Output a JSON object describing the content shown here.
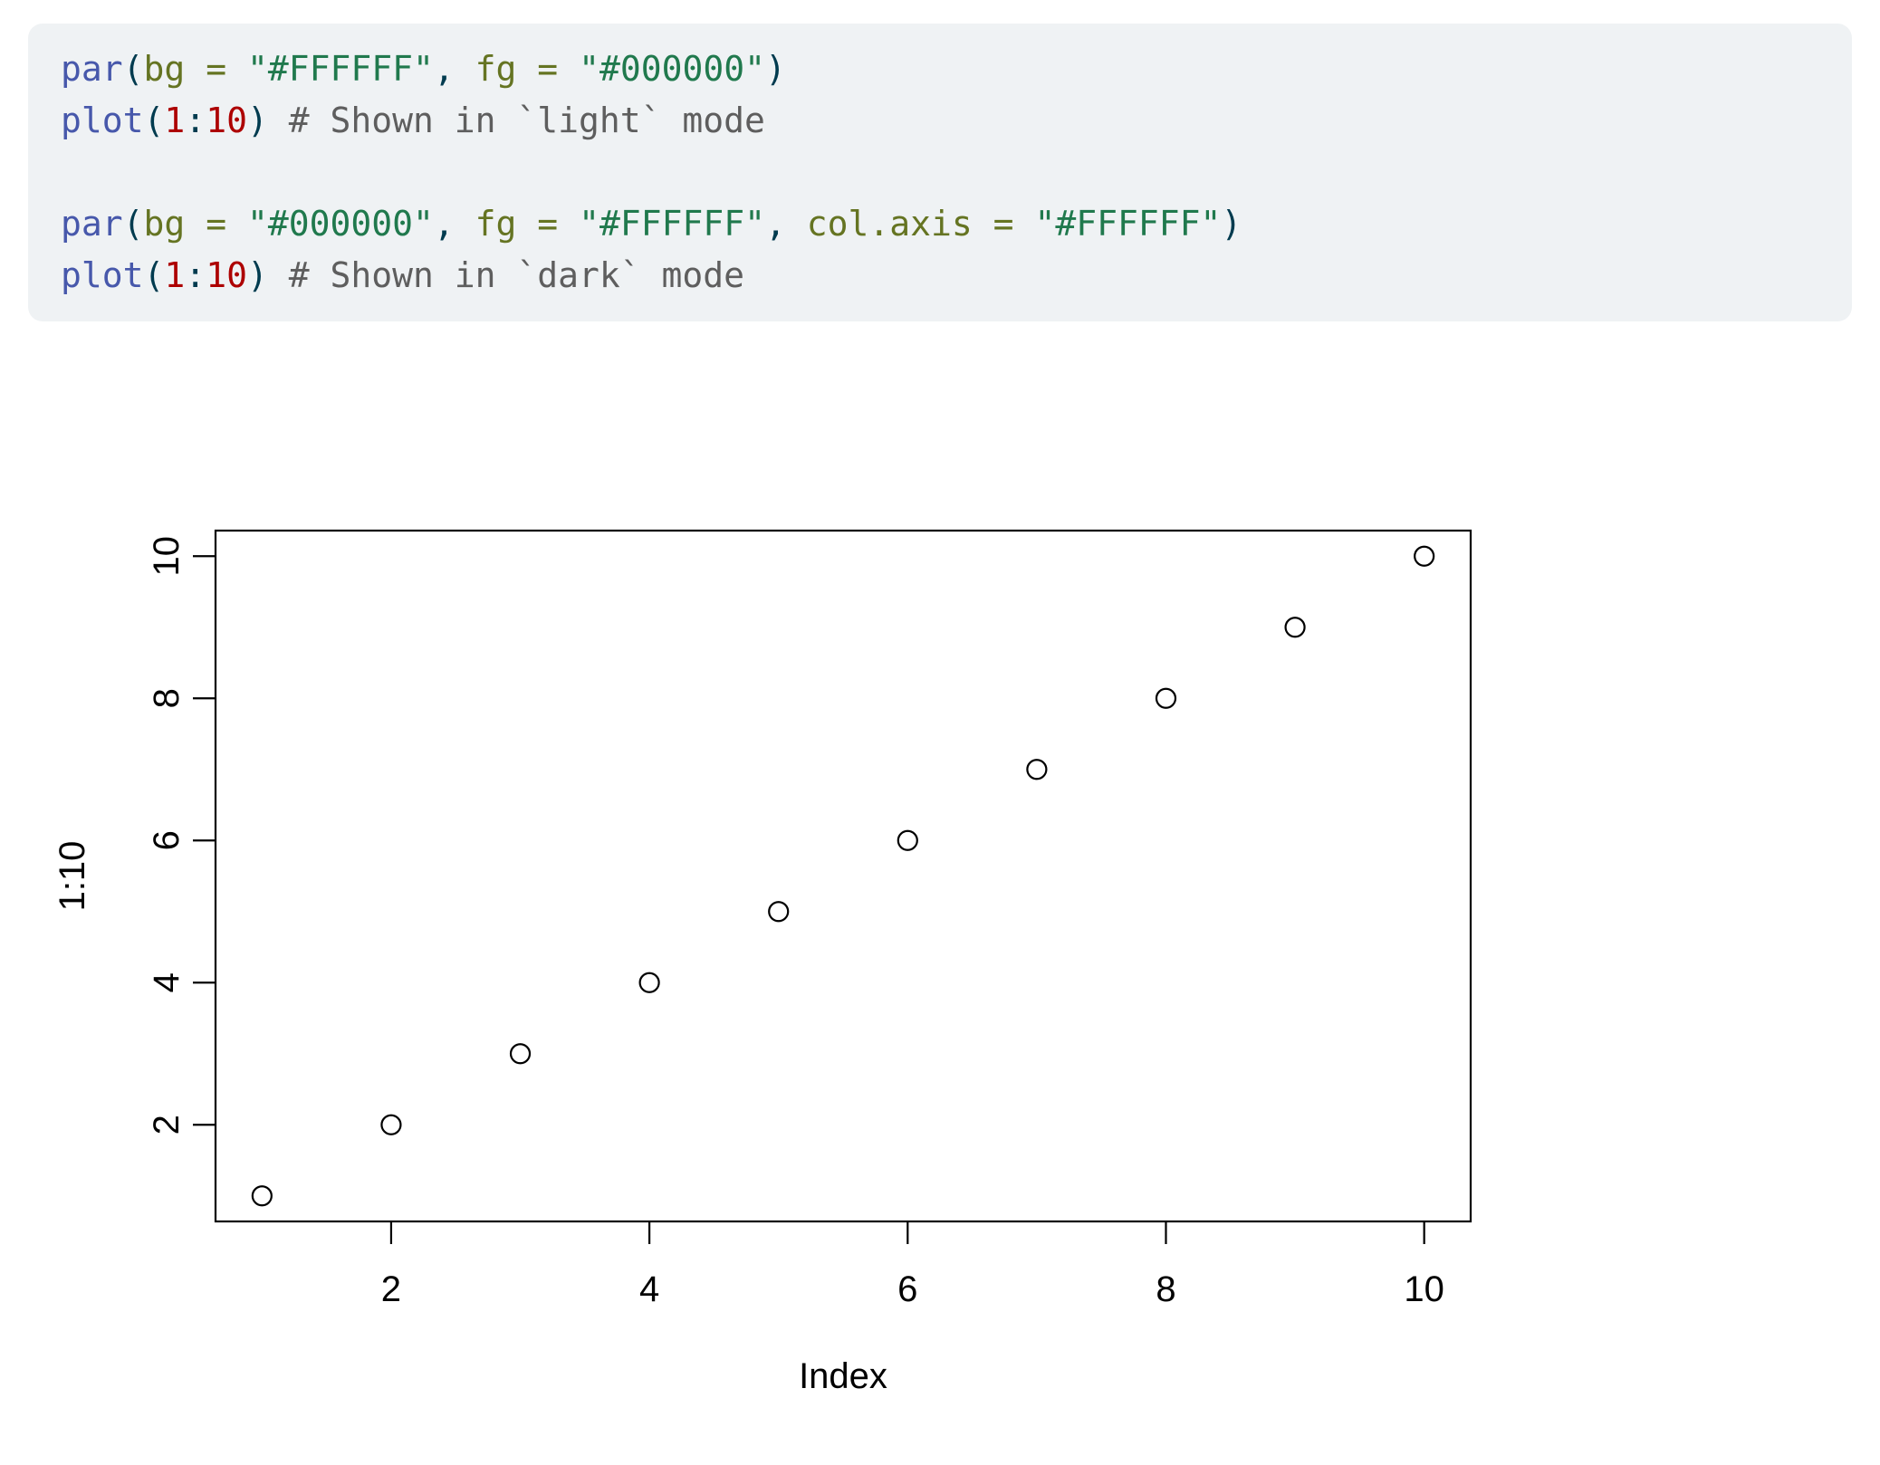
{
  "page": {
    "background_color": "#FFFFFF"
  },
  "code_block": {
    "background_color": "#EFF2F4",
    "lines": [
      [
        {
          "t": "par",
          "c": "fu"
        },
        {
          "t": "(",
          "c": "pl"
        },
        {
          "t": "bg",
          "c": "at"
        },
        {
          "t": " ",
          "c": "pl"
        },
        {
          "t": "=",
          "c": "at"
        },
        {
          "t": " ",
          "c": "pl"
        },
        {
          "t": "\"#FFFFFF\"",
          "c": "st"
        },
        {
          "t": ", ",
          "c": "pl"
        },
        {
          "t": "fg",
          "c": "at"
        },
        {
          "t": " ",
          "c": "pl"
        },
        {
          "t": "=",
          "c": "at"
        },
        {
          "t": " ",
          "c": "pl"
        },
        {
          "t": "\"#000000\"",
          "c": "st"
        },
        {
          "t": ")",
          "c": "pl"
        }
      ],
      [
        {
          "t": "plot",
          "c": "fu"
        },
        {
          "t": "(",
          "c": "pl"
        },
        {
          "t": "1",
          "c": "dv"
        },
        {
          "t": ":",
          "c": "pl"
        },
        {
          "t": "10",
          "c": "dv"
        },
        {
          "t": ")",
          "c": "pl"
        },
        {
          "t": " ",
          "c": "pl"
        },
        {
          "t": "# Shown in `light` mode",
          "c": "co"
        }
      ],
      [],
      [
        {
          "t": "par",
          "c": "fu"
        },
        {
          "t": "(",
          "c": "pl"
        },
        {
          "t": "bg",
          "c": "at"
        },
        {
          "t": " ",
          "c": "pl"
        },
        {
          "t": "=",
          "c": "at"
        },
        {
          "t": " ",
          "c": "pl"
        },
        {
          "t": "\"#000000\"",
          "c": "st"
        },
        {
          "t": ", ",
          "c": "pl"
        },
        {
          "t": "fg",
          "c": "at"
        },
        {
          "t": " ",
          "c": "pl"
        },
        {
          "t": "=",
          "c": "at"
        },
        {
          "t": " ",
          "c": "pl"
        },
        {
          "t": "\"#FFFFFF\"",
          "c": "st"
        },
        {
          "t": ", ",
          "c": "pl"
        },
        {
          "t": "col.axis",
          "c": "at"
        },
        {
          "t": " ",
          "c": "pl"
        },
        {
          "t": "=",
          "c": "at"
        },
        {
          "t": " ",
          "c": "pl"
        },
        {
          "t": "\"#FFFFFF\"",
          "c": "st"
        },
        {
          "t": ")",
          "c": "pl"
        }
      ],
      [
        {
          "t": "plot",
          "c": "fu"
        },
        {
          "t": "(",
          "c": "pl"
        },
        {
          "t": "1",
          "c": "dv"
        },
        {
          "t": ":",
          "c": "pl"
        },
        {
          "t": "10",
          "c": "dv"
        },
        {
          "t": ")",
          "c": "pl"
        },
        {
          "t": " ",
          "c": "pl"
        },
        {
          "t": "# Shown in `dark` mode",
          "c": "co"
        }
      ]
    ]
  },
  "syntax_colors": {
    "fu": "#4758AB",
    "at": "#657422",
    "st": "#20794D",
    "dv": "#AD0000",
    "co": "#5E5E5E",
    "pl": "#003B4F"
  },
  "chart_data": {
    "type": "scatter",
    "x": [
      1,
      2,
      3,
      4,
      5,
      6,
      7,
      8,
      9,
      10
    ],
    "y": [
      1,
      2,
      3,
      4,
      5,
      6,
      7,
      8,
      9,
      10
    ],
    "xlabel": "Index",
    "ylabel": "1:10",
    "xlim": [
      0.64,
      10.36
    ],
    "ylim": [
      0.64,
      10.36
    ],
    "xticks": [
      "2",
      "4",
      "6",
      "8",
      "10"
    ],
    "xtick_values": [
      2,
      4,
      6,
      8,
      10
    ],
    "yticks": [
      "2",
      "4",
      "6",
      "8",
      "10"
    ],
    "ytick_values": [
      2,
      4,
      6,
      8,
      10
    ],
    "grid": false,
    "legend": false,
    "point_shape": "open-circle",
    "fg_color": "#000000",
    "bg_color": "#FFFFFF"
  }
}
